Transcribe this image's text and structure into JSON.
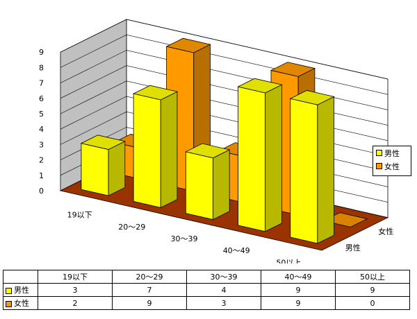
{
  "chart_data": {
    "type": "bar",
    "subtype": "3d-clustered-depth",
    "categories": [
      "19以下",
      "20～29",
      "30～39",
      "40～49",
      "50以上"
    ],
    "series": [
      {
        "name": "男性",
        "values": [
          3,
          7,
          4,
          9,
          9
        ],
        "color": "#ffff00"
      },
      {
        "name": "女性",
        "values": [
          2,
          9,
          3,
          9,
          0
        ],
        "color": "#ff9900"
      }
    ],
    "ylim": [
      0,
      9
    ],
    "yticks": [
      "0",
      "1",
      "2",
      "3",
      "4",
      "5",
      "6",
      "7",
      "8",
      "9"
    ],
    "legend_position": "right",
    "grid": true,
    "floor_color": "#993300",
    "wall_color": "#c0c0c0"
  }
}
